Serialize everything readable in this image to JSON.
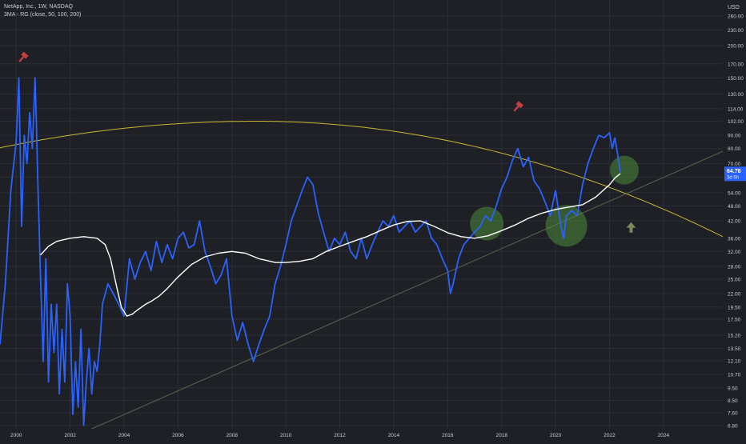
{
  "header": {
    "symbol_line": "NetApp, Inc., 1W, NASDAQ",
    "indicator_line": "3MA - RG (close, 50, 100, 200)"
  },
  "price_axis": {
    "currency": "USD",
    "last_price": "64.78",
    "last_price_sub": "3d 6h"
  },
  "colors": {
    "background": "#1e2025",
    "grid": "#2b2e36",
    "price_line": "#2962ff",
    "moving_average": "#ffffff",
    "parabolic_curve": "#c9b832",
    "trendline": "#5a6350",
    "circles": "#4c8a3c",
    "sell_marker": "#c2413f",
    "buy_marker": "#7a8a5c",
    "last_price_tag": "#2962ff"
  },
  "chart_data": {
    "type": "line",
    "scale": "log",
    "x_ticks": [
      "2000",
      "2002",
      "2004",
      "2006",
      "2008",
      "2010",
      "2012",
      "2014",
      "2016",
      "2018",
      "2020",
      "2022",
      "2024"
    ],
    "y_ticks": [
      6.8,
      7.6,
      8.5,
      9.5,
      10.7,
      12.1,
      13.5,
      15.2,
      17.5,
      19.5,
      22.0,
      25.0,
      28.0,
      32.0,
      36.0,
      42.0,
      48.0,
      54.0,
      62.0,
      70.0,
      80.0,
      90.0,
      102.0,
      114.0,
      130.0,
      150.0,
      170.0,
      200.0,
      230.0,
      260.0
    ],
    "y_tick_labels": [
      "6.80",
      "7.60",
      "8.50",
      "9.50",
      "10.70",
      "12.10",
      "13.50",
      "15.20",
      "17.50",
      "19.50",
      "22.00",
      "25.00",
      "28.00",
      "32.00",
      "36.00",
      "42.00",
      "48.00",
      "54.00",
      "62.00",
      "70.00",
      "80.00",
      "90.00",
      "102.00",
      "114.00",
      "130.00",
      "150.00",
      "170.00",
      "200.00",
      "230.00",
      "260.00"
    ],
    "ylim": [
      6.6,
      300
    ],
    "xlim": [
      1999.4,
      2026.2
    ],
    "series": [
      {
        "name": "",
        "role": "price",
        "x": [
          1999.4,
          1999.6,
          1999.8,
          2000.0,
          2000.1,
          2000.2,
          2000.3,
          2000.4,
          2000.5,
          2000.6,
          2000.7,
          2000.75,
          2000.8,
          2000.85,
          2000.9,
          2000.95,
          2001.0,
          2001.1,
          2001.2,
          2001.3,
          2001.4,
          2001.5,
          2001.6,
          2001.7,
          2001.8,
          2001.9,
          2002.0,
          2002.1,
          2002.2,
          2002.3,
          2002.4,
          2002.5,
          2002.6,
          2002.7,
          2002.8,
          2002.9,
          2003.0,
          2003.1,
          2003.2,
          2003.4,
          2003.6,
          2003.8,
          2004.0,
          2004.2,
          2004.4,
          2004.6,
          2004.8,
          2005.0,
          2005.2,
          2005.4,
          2005.6,
          2005.8,
          2006.0,
          2006.2,
          2006.4,
          2006.6,
          2006.8,
          2007.0,
          2007.2,
          2007.4,
          2007.6,
          2007.8,
          2008.0,
          2008.2,
          2008.4,
          2008.6,
          2008.8,
          2008.9,
          2009.0,
          2009.2,
          2009.4,
          2009.6,
          2009.8,
          2010.0,
          2010.2,
          2010.4,
          2010.6,
          2010.8,
          2011.0,
          2011.2,
          2011.4,
          2011.6,
          2011.8,
          2012.0,
          2012.2,
          2012.4,
          2012.6,
          2012.8,
          2013.0,
          2013.2,
          2013.4,
          2013.6,
          2013.8,
          2014.0,
          2014.2,
          2014.4,
          2014.6,
          2014.8,
          2015.0,
          2015.2,
          2015.4,
          2015.6,
          2015.8,
          2016.0,
          2016.1,
          2016.2,
          2016.4,
          2016.6,
          2016.8,
          2017.0,
          2017.2,
          2017.4,
          2017.6,
          2017.8,
          2018.0,
          2018.2,
          2018.4,
          2018.6,
          2018.8,
          2019.0,
          2019.2,
          2019.4,
          2019.6,
          2019.8,
          2020.0,
          2020.2,
          2020.3,
          2020.4,
          2020.6,
          2020.8,
          2021.0,
          2021.2,
          2021.4,
          2021.6,
          2021.8,
          2022.0,
          2022.1,
          2022.2,
          2022.3,
          2022.4
        ],
        "y": [
          14.0,
          24.0,
          55.0,
          85.0,
          150.0,
          40.0,
          90.0,
          70.0,
          110.0,
          80.0,
          150.0,
          100.0,
          60.0,
          40.0,
          26.0,
          18.0,
          12.0,
          30.0,
          10.0,
          20.0,
          13.0,
          20.0,
          9.0,
          16.0,
          10.0,
          24.0,
          18.0,
          7.5,
          12.0,
          8.0,
          16.0,
          6.8,
          10.0,
          13.5,
          9.0,
          12.0,
          11.0,
          14.0,
          20.0,
          24.0,
          22.0,
          20.0,
          18.0,
          30.0,
          25.0,
          29.0,
          32.0,
          27.0,
          35.0,
          29.0,
          34.0,
          30.0,
          36.0,
          38.0,
          33.0,
          34.0,
          42.0,
          32.0,
          28.0,
          24.0,
          26.0,
          30.0,
          18.0,
          14.5,
          17.0,
          14.0,
          12.0,
          13.0,
          14.0,
          16.0,
          18.0,
          24.0,
          28.0,
          34.0,
          42.0,
          48.0,
          55.0,
          62.0,
          58.0,
          45.0,
          38.0,
          32.0,
          36.0,
          34.0,
          38.0,
          32.0,
          30.0,
          36.0,
          30.0,
          34.0,
          38.0,
          42.0,
          40.0,
          44.0,
          38.0,
          40.0,
          42.0,
          38.0,
          40.0,
          42.0,
          36.0,
          34.0,
          30.0,
          27.0,
          22.0,
          24.0,
          30.0,
          34.0,
          36.0,
          38.0,
          40.0,
          44.0,
          42.0,
          48.0,
          56.0,
          62.0,
          72.0,
          80.0,
          68.0,
          74.0,
          60.0,
          56.0,
          50.0,
          44.0,
          55.0,
          40.0,
          36.0,
          44.0,
          46.0,
          44.0,
          58.0,
          70.0,
          80.0,
          90.0,
          88.0,
          92.0,
          80.0,
          88.0,
          76.0,
          64.78
        ]
      },
      {
        "name": "",
        "role": "moving_average",
        "x": [
          2000.9,
          2001.2,
          2001.5,
          2002.0,
          2002.5,
          2003.0,
          2003.3,
          2003.5,
          2003.7,
          2003.9,
          2004.1,
          2004.3,
          2004.5,
          2004.8,
          2005.0,
          2005.3,
          2005.6,
          2006.0,
          2006.5,
          2007.0,
          2007.5,
          2008.0,
          2008.5,
          2009.0,
          2009.3,
          2009.6,
          2010.0,
          2010.5,
          2011.0,
          2011.5,
          2012.0,
          2012.5,
          2013.0,
          2013.5,
          2014.0,
          2014.5,
          2015.0,
          2015.5,
          2016.0,
          2016.5,
          2017.0,
          2017.5,
          2018.0,
          2018.5,
          2019.0,
          2019.5,
          2020.0,
          2020.5,
          2021.0,
          2021.5,
          2022.0,
          2022.2,
          2022.4
        ],
        "y": [
          31.0,
          33.5,
          35.0,
          36.0,
          36.5,
          36.0,
          34.0,
          30.0,
          24.0,
          19.5,
          18.0,
          18.3,
          19.0,
          20.0,
          20.5,
          21.5,
          23.0,
          25.5,
          28.5,
          30.5,
          31.5,
          32.0,
          31.5,
          30.0,
          29.5,
          29.0,
          29.0,
          29.3,
          30.0,
          32.0,
          33.5,
          35.0,
          36.5,
          38.5,
          40.5,
          41.8,
          42.0,
          40.0,
          37.8,
          36.5,
          36.0,
          36.8,
          38.5,
          40.5,
          43.0,
          45.0,
          46.5,
          47.5,
          48.5,
          52.0,
          58.0,
          61.5,
          64.0
        ]
      }
    ],
    "annotations": {
      "parabola": {
        "vertex_x": 2008.9,
        "vertex_y": 102.0,
        "left_y": 80.5,
        "right_y": 36.5
      },
      "trendline": {
        "x": [
          2002.8,
          2026.2
        ],
        "y": [
          6.6,
          78.0
        ]
      },
      "circles": [
        {
          "x": 2017.45,
          "y": 41.0,
          "r": 21
        },
        {
          "x": 2020.4,
          "y": 40.2,
          "r": 26
        },
        {
          "x": 2022.55,
          "y": 66.0,
          "r": 18
        }
      ],
      "sell_markers": [
        {
          "x": 2000.25,
          "y": 180.0
        },
        {
          "x": 2018.6,
          "y": 116.0
        }
      ],
      "buy_markers": [
        {
          "x": 2022.8,
          "y": 39.5
        }
      ]
    }
  }
}
